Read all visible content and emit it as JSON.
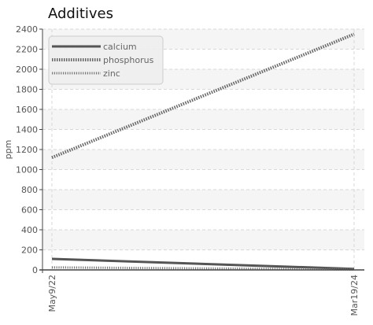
{
  "chart_data": {
    "type": "line",
    "title": "Additives",
    "xlabel": "",
    "ylabel": "ppm",
    "x_ticks": [
      "May9/22",
      "Mar19/24"
    ],
    "ylim": [
      0,
      2400
    ],
    "y_ticks": [
      0,
      200,
      400,
      600,
      800,
      1000,
      1200,
      1400,
      1600,
      1800,
      2000,
      2200,
      2400
    ],
    "grid": true,
    "legend_position": "top-left",
    "series": [
      {
        "name": "calcium",
        "color": "#555555",
        "style": "solid",
        "values": [
          110,
          10
        ]
      },
      {
        "name": "phosphorus",
        "color": "#666666",
        "style": "dotted-thick",
        "values": [
          1120,
          2350
        ]
      },
      {
        "name": "zinc",
        "color": "#777777",
        "style": "dotted-thin",
        "values": [
          25,
          5
        ]
      }
    ]
  }
}
